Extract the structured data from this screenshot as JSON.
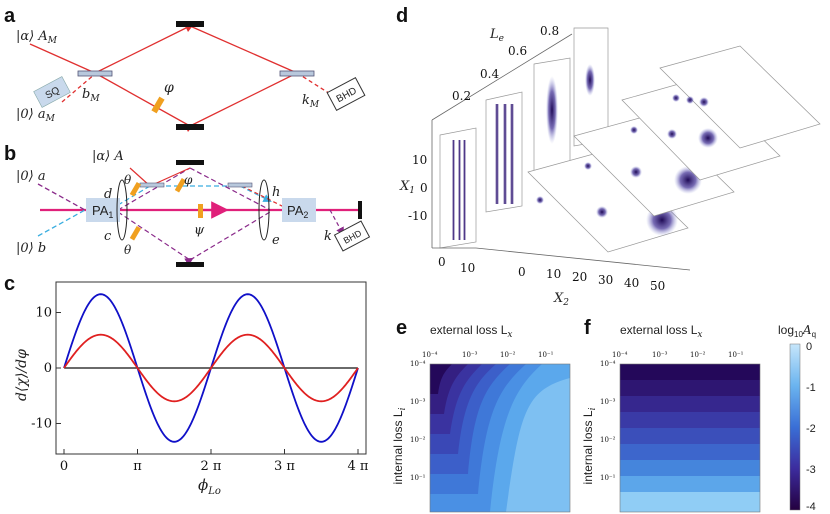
{
  "panels": {
    "a": "a",
    "b": "b",
    "c": "c",
    "d": "d",
    "e": "e",
    "f": "f"
  },
  "panel_a": {
    "input_top": "|α⟩ A",
    "input_top_sub": "M",
    "input_bottom": "|0⟩ a",
    "input_bottom_sub": "M",
    "squeezer": "SQ",
    "mode_b": "b",
    "mode_b_sub": "M",
    "phase": "φ",
    "mode_k": "k",
    "mode_k_sub": "M",
    "detector": "BHD"
  },
  "panel_b": {
    "input_alpha": "|α⟩ A",
    "input_a": "|0⟩ a",
    "input_b": "|0⟩ b",
    "amp1": "PA",
    "amp1_sub": "1",
    "amp2": "PA",
    "amp2_sub": "2",
    "mode_d": "d",
    "mode_c": "c",
    "mode_h": "h",
    "mode_e": "e",
    "theta_top": "θ",
    "theta_bottom": "θ",
    "phi": "φ",
    "psi": "ψ",
    "mode_k": "k",
    "detector": "BHD"
  },
  "chart_c": {
    "type": "line",
    "xlabel": "ϕ",
    "xlabel_sub": "Lo",
    "ylabel": "d⟨χ⟩/dφ",
    "x_ticks": [
      "0",
      "π",
      "2 π",
      "3 π",
      "4 π"
    ],
    "y_ticks": [
      "10",
      "0",
      "-10"
    ],
    "xlim": [
      0,
      12.566
    ],
    "ylim": [
      -15.5,
      15.5
    ],
    "series": [
      {
        "name": "blue",
        "color": "#1010c8",
        "amplitude": 13.3,
        "period": 6.283
      },
      {
        "name": "red",
        "color": "#e02020",
        "amplitude": 6.0,
        "period": 6.283
      }
    ],
    "zero_line": true
  },
  "panel_d": {
    "axis_le": "L",
    "axis_le_sub": "e",
    "le_ticks": [
      "0.2",
      "0.4",
      "0.6",
      "0.8"
    ],
    "axis_x1": "X",
    "axis_x1_sub": "1",
    "x1_ticks": [
      "10",
      "0",
      "-10"
    ],
    "axis_x2": "X",
    "axis_x2_sub": "2",
    "x2_ticks_left": [
      "0",
      "10"
    ],
    "x2_ticks_right": [
      "0",
      "10",
      "20",
      "30",
      "40",
      "50"
    ]
  },
  "heatmap_e": {
    "title": "external loss L",
    "title_sub": "x",
    "ylabel": "internal loss L",
    "ylabel_sub": "i",
    "x_ticks": [
      "10⁻⁴",
      "10⁻³",
      "10⁻²",
      "10⁻¹"
    ],
    "y_ticks": [
      "10⁻⁴",
      "10⁻³",
      "10⁻²",
      "10⁻¹"
    ]
  },
  "heatmap_f": {
    "title": "external loss L",
    "title_sub": "x",
    "ylabel": "internal loss L",
    "ylabel_sub": "i",
    "x_ticks": [
      "10⁻⁴",
      "10⁻³",
      "10⁻²",
      "10⁻¹"
    ],
    "y_ticks": [
      "10⁻⁴",
      "10⁻³",
      "10⁻²",
      "10⁻¹"
    ]
  },
  "colorbar": {
    "label": "log",
    "label_sub": "10",
    "label_var": "A",
    "label_var_sub": "q",
    "ticks": [
      "0",
      "-1",
      "-2",
      "-3",
      "-4"
    ],
    "colors": [
      "#c6e6fb",
      "#3b8fe0",
      "#3a4fc2",
      "#3c1f8e",
      "#24003f"
    ]
  },
  "colors": {
    "beam_red": "#e03030",
    "pump": "#e0207a",
    "dashed_blue": "#3aaee0",
    "dashed_purple": "#8a2a8a",
    "phase_plate": "#f0a020"
  }
}
